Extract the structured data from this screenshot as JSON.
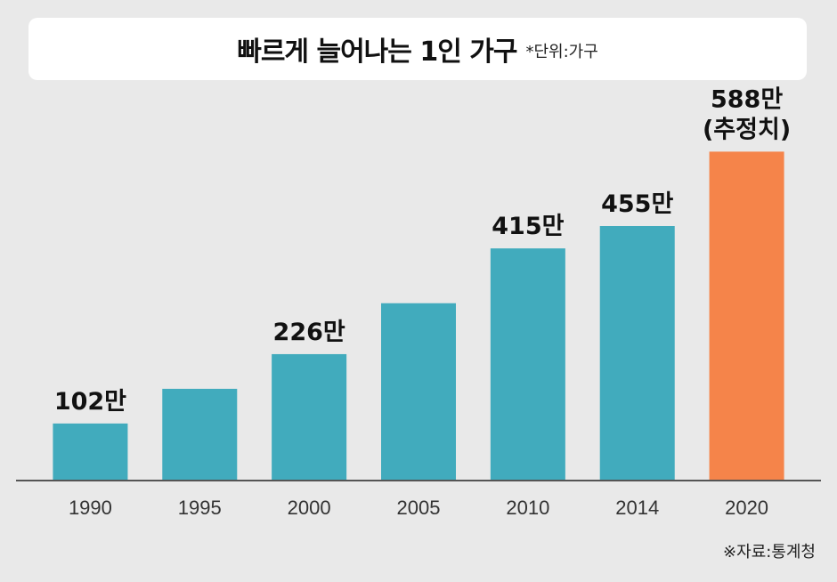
{
  "title": "빠르게 늘어나는 1인 가구",
  "unit_note": "*단위:가구",
  "source": "※자료:통계청",
  "colors": {
    "bar": "#41abbd",
    "highlight": "#f5844a",
    "axis": "#555555"
  },
  "chart_data": {
    "type": "bar",
    "categories": [
      "1990",
      "1995",
      "2000",
      "2005",
      "2010",
      "2014",
      "2020"
    ],
    "values": [
      102,
      164,
      226,
      317,
      415,
      455,
      588
    ],
    "data_labels": [
      "102만",
      "",
      "226만",
      "",
      "415만",
      "455만",
      "588만\n(추정치)"
    ],
    "highlight_index": 6,
    "ylim": [
      0,
      700
    ],
    "grid": false,
    "title": "빠르게 늘어나는 1인 가구",
    "xlabel": "",
    "ylabel": ""
  }
}
